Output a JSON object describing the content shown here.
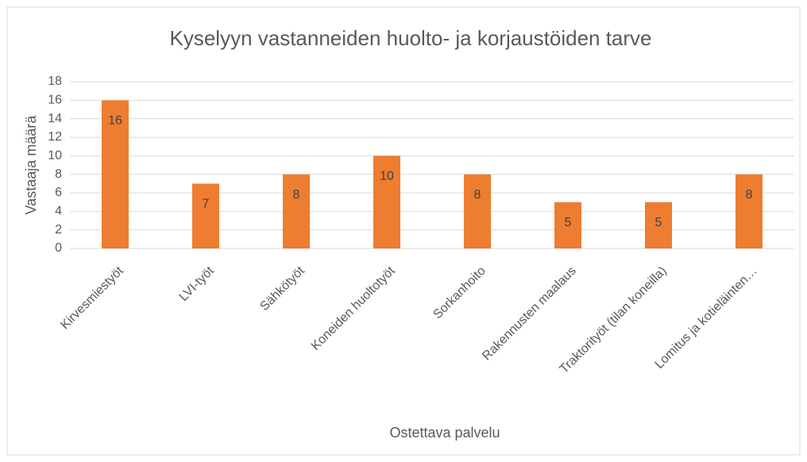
{
  "chart_data": {
    "type": "bar",
    "title": "Kyselyyn vastanneiden huolto- ja korjaustöiden tarve",
    "x_label": "Ostettava palvelu",
    "y_label": "Vastaaja määrä",
    "categories": [
      "Kirvesmiestyöt",
      "LVI-työt",
      "Sähkötyöt",
      "Koneiden huoltotyöt",
      "Sorkanhoito",
      "Rakennusten maalaus",
      "Traktorityöt (tilan koneilla)",
      "Lomitus ja kotieläinten…"
    ],
    "values": [
      16,
      7,
      8,
      10,
      8,
      5,
      5,
      8
    ],
    "color": "#ed7d31",
    "ylim": [
      0,
      18
    ],
    "yticks": [
      0,
      2,
      4,
      6,
      8,
      10,
      12,
      14,
      16,
      18
    ],
    "grid": true
  }
}
